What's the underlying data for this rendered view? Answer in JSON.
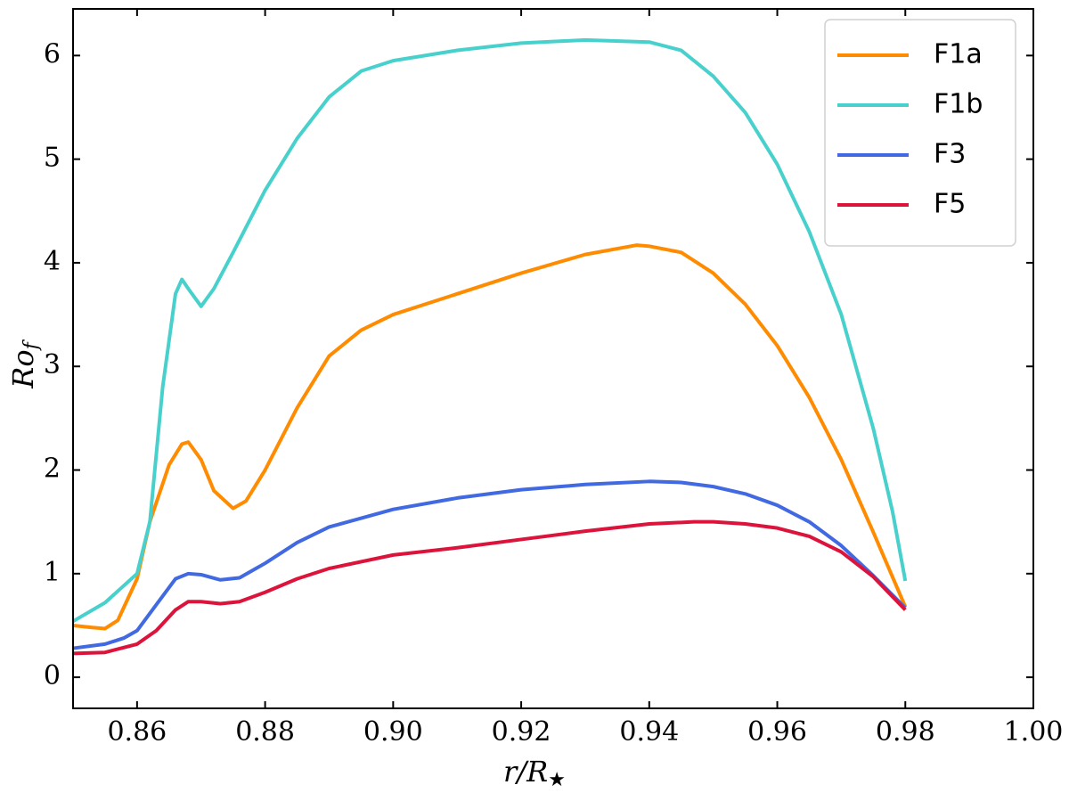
{
  "chart_data": {
    "type": "line",
    "xlabel": {
      "text": "r/R",
      "subscript": "★"
    },
    "ylabel": {
      "text": "Ro",
      "subscript": "f"
    },
    "xlim": [
      0.85,
      1.0
    ],
    "ylim": [
      -0.3,
      6.45
    ],
    "xticks": [
      {
        "value": 0.86,
        "label": "0.86"
      },
      {
        "value": 0.88,
        "label": "0.88"
      },
      {
        "value": 0.9,
        "label": "0.90"
      },
      {
        "value": 0.92,
        "label": "0.92"
      },
      {
        "value": 0.94,
        "label": "0.94"
      },
      {
        "value": 0.96,
        "label": "0.96"
      },
      {
        "value": 0.98,
        "label": "0.98"
      },
      {
        "value": 1.0,
        "label": "1.00"
      }
    ],
    "yticks": [
      0,
      1,
      2,
      3,
      4,
      5,
      6
    ],
    "legend": "upper right",
    "series": [
      {
        "name": "F1a",
        "color": "#ff8c00",
        "x": [
          0.85,
          0.853,
          0.855,
          0.857,
          0.86,
          0.862,
          0.865,
          0.867,
          0.868,
          0.87,
          0.872,
          0.875,
          0.877,
          0.88,
          0.885,
          0.89,
          0.895,
          0.9,
          0.91,
          0.92,
          0.93,
          0.938,
          0.94,
          0.945,
          0.95,
          0.955,
          0.96,
          0.965,
          0.97,
          0.975,
          0.98
        ],
        "values": [
          0.5,
          0.48,
          0.47,
          0.55,
          0.95,
          1.5,
          2.05,
          2.25,
          2.27,
          2.1,
          1.8,
          1.63,
          1.7,
          2.0,
          2.6,
          3.1,
          3.35,
          3.5,
          3.7,
          3.9,
          4.08,
          4.17,
          4.16,
          4.1,
          3.9,
          3.6,
          3.2,
          2.7,
          2.1,
          1.4,
          0.68
        ]
      },
      {
        "name": "F1b",
        "color": "#48d1cc",
        "x": [
          0.85,
          0.855,
          0.86,
          0.862,
          0.864,
          0.866,
          0.867,
          0.868,
          0.87,
          0.872,
          0.875,
          0.88,
          0.885,
          0.89,
          0.895,
          0.9,
          0.91,
          0.92,
          0.93,
          0.94,
          0.945,
          0.95,
          0.955,
          0.96,
          0.965,
          0.97,
          0.975,
          0.978,
          0.98
        ],
        "values": [
          0.54,
          0.72,
          1.0,
          1.5,
          2.8,
          3.7,
          3.84,
          3.75,
          3.58,
          3.75,
          4.1,
          4.7,
          5.2,
          5.6,
          5.85,
          5.95,
          6.05,
          6.12,
          6.15,
          6.13,
          6.05,
          5.8,
          5.45,
          4.95,
          4.3,
          3.5,
          2.4,
          1.6,
          0.93
        ]
      },
      {
        "name": "F3",
        "color": "#4169e1",
        "x": [
          0.85,
          0.855,
          0.858,
          0.86,
          0.863,
          0.866,
          0.868,
          0.87,
          0.873,
          0.876,
          0.88,
          0.885,
          0.89,
          0.9,
          0.91,
          0.92,
          0.93,
          0.94,
          0.945,
          0.95,
          0.955,
          0.96,
          0.965,
          0.97,
          0.975,
          0.98
        ],
        "values": [
          0.28,
          0.32,
          0.38,
          0.45,
          0.7,
          0.95,
          1.0,
          0.99,
          0.94,
          0.96,
          1.1,
          1.3,
          1.45,
          1.62,
          1.73,
          1.81,
          1.86,
          1.89,
          1.88,
          1.84,
          1.77,
          1.66,
          1.5,
          1.27,
          0.98,
          0.67
        ]
      },
      {
        "name": "F5",
        "color": "#dc143c",
        "x": [
          0.85,
          0.855,
          0.86,
          0.863,
          0.866,
          0.868,
          0.87,
          0.873,
          0.876,
          0.88,
          0.885,
          0.89,
          0.9,
          0.91,
          0.92,
          0.93,
          0.94,
          0.947,
          0.95,
          0.955,
          0.96,
          0.965,
          0.97,
          0.975,
          0.98
        ],
        "values": [
          0.23,
          0.24,
          0.32,
          0.45,
          0.65,
          0.73,
          0.73,
          0.71,
          0.73,
          0.82,
          0.95,
          1.05,
          1.18,
          1.25,
          1.33,
          1.41,
          1.48,
          1.5,
          1.5,
          1.48,
          1.44,
          1.36,
          1.21,
          0.97,
          0.65
        ]
      }
    ]
  }
}
